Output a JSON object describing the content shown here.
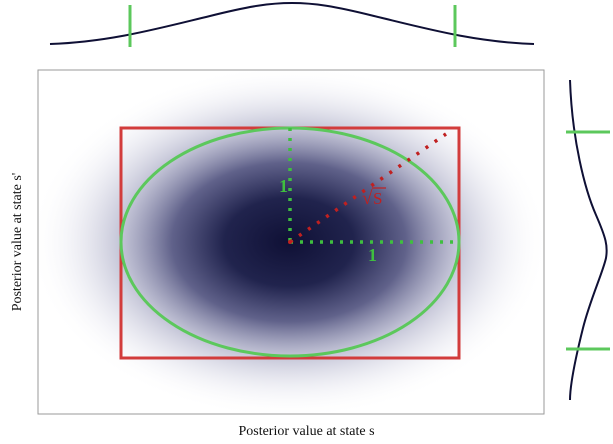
{
  "labels": {
    "x_axis": "Posterior value at state s",
    "y_axis": "Posterior value at state s'",
    "unit_one_horizontal": "1",
    "unit_one_vertical": "1",
    "sqrt_s": "S",
    "sqrt_symbol": "√"
  },
  "colors": {
    "density": "#0f1035",
    "rectangle": "#d23c3c",
    "ellipse": "#5cc85c",
    "unit_guides": "#3fbf3f",
    "sqrt_s_guide": "#c02020",
    "marginal_curve": "#0f1035",
    "frame": "#9a9a9a"
  }
}
